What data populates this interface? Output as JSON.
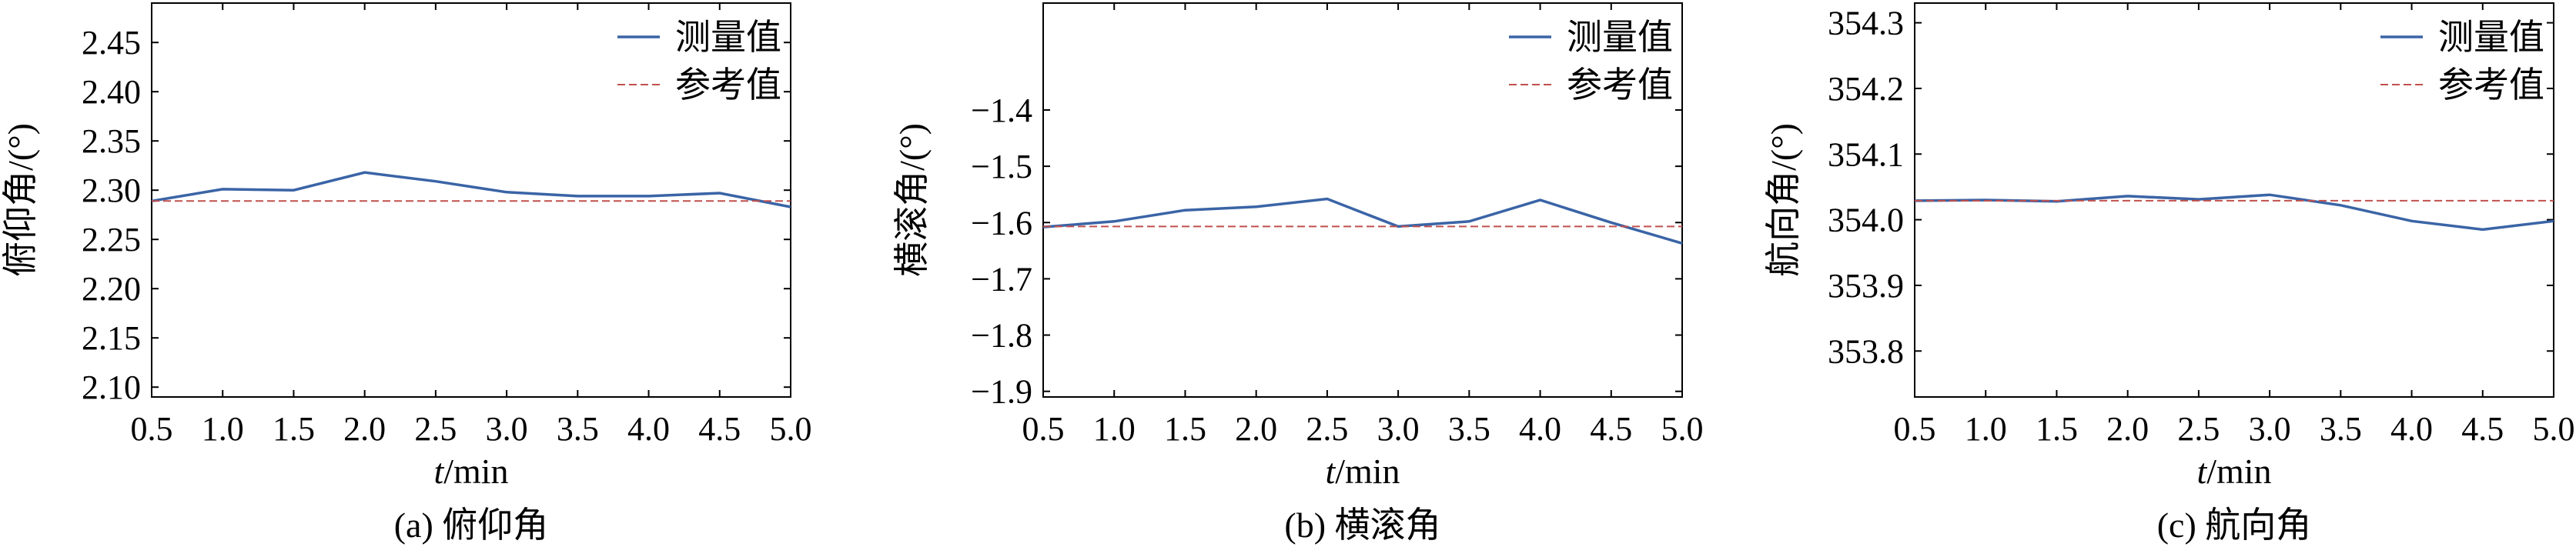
{
  "legend": {
    "measured": "测量值",
    "reference": "参考值"
  },
  "colors": {
    "measured": "#3a64a6",
    "reference": "#c0504d",
    "axis": "#000000"
  },
  "chart_data": [
    {
      "type": "line",
      "caption": "(a) 俯仰角",
      "xlabel_italic": "t",
      "xlabel_unit": "/min",
      "ylabel": "俯仰角/(°)",
      "xlim": [
        0.5,
        5.0
      ],
      "ylim": [
        2.09,
        2.49
      ],
      "xticks": [
        "0.5",
        "1.0",
        "1.5",
        "2.0",
        "2.5",
        "3.0",
        "3.5",
        "4.0",
        "4.5",
        "5.0"
      ],
      "yticks": [
        "2.10",
        "2.15",
        "2.20",
        "2.25",
        "2.30",
        "2.35",
        "2.40",
        "2.45"
      ],
      "x": [
        0.5,
        1.0,
        1.5,
        2.0,
        2.5,
        3.0,
        3.5,
        4.0,
        4.5,
        5.0
      ],
      "series": [
        {
          "name": "测量值",
          "style": "solid",
          "values": [
            2.289,
            2.301,
            2.3,
            2.318,
            2.309,
            2.298,
            2.294,
            2.294,
            2.297,
            2.283
          ]
        },
        {
          "name": "参考值",
          "style": "dashed",
          "values": [
            2.289,
            2.289,
            2.289,
            2.289,
            2.289,
            2.289,
            2.289,
            2.289,
            2.289,
            2.289
          ]
        }
      ],
      "legend_position": "top-right"
    },
    {
      "type": "line",
      "caption": "(b) 横滚角",
      "xlabel_italic": "t",
      "xlabel_unit": "/min",
      "ylabel": "横滚角/(°)",
      "xlim": [
        0.5,
        5.0
      ],
      "ylim": [
        -1.91,
        -1.21
      ],
      "xticks": [
        "0.5",
        "1.0",
        "1.5",
        "2.0",
        "2.5",
        "3.0",
        "3.5",
        "4.0",
        "4.5",
        "5.0"
      ],
      "yticks": [
        "−1.4",
        "−1.5",
        "−1.6",
        "−1.7",
        "−1.8",
        "−1.9"
      ],
      "x": [
        0.5,
        1.0,
        1.5,
        2.0,
        2.5,
        3.0,
        3.5,
        4.0,
        4.5,
        5.0
      ],
      "series": [
        {
          "name": "测量值",
          "style": "solid",
          "values": [
            -1.608,
            -1.598,
            -1.578,
            -1.572,
            -1.558,
            -1.607,
            -1.598,
            -1.56,
            -1.6,
            -1.637
          ]
        },
        {
          "name": "参考值",
          "style": "dashed",
          "values": [
            -1.607,
            -1.607,
            -1.607,
            -1.607,
            -1.607,
            -1.607,
            -1.607,
            -1.607,
            -1.607,
            -1.607
          ]
        }
      ],
      "legend_position": "top-right"
    },
    {
      "type": "line",
      "caption": "(c) 航向角",
      "xlabel_italic": "t",
      "xlabel_unit": "/min",
      "ylabel": "航向角/(°)",
      "xlim": [
        0.5,
        5.0
      ],
      "ylim": [
        353.73,
        354.33
      ],
      "xticks": [
        "0.5",
        "1.0",
        "1.5",
        "2.0",
        "2.5",
        "3.0",
        "3.5",
        "4.0",
        "4.5",
        "5.0"
      ],
      "yticks": [
        "353.8",
        "353.9",
        "354.0",
        "354.1",
        "354.2",
        "354.3"
      ],
      "x": [
        0.5,
        1.0,
        1.5,
        2.0,
        2.5,
        3.0,
        3.5,
        4.0,
        4.5,
        5.0
      ],
      "series": [
        {
          "name": "测量值",
          "style": "solid",
          "values": [
            354.029,
            354.03,
            354.028,
            354.036,
            354.031,
            354.038,
            354.022,
            353.998,
            353.985,
            353.998
          ]
        },
        {
          "name": "参考值",
          "style": "dashed",
          "values": [
            354.029,
            354.029,
            354.029,
            354.029,
            354.029,
            354.029,
            354.029,
            354.029,
            354.029,
            354.029
          ]
        }
      ],
      "legend_position": "top-right"
    }
  ]
}
